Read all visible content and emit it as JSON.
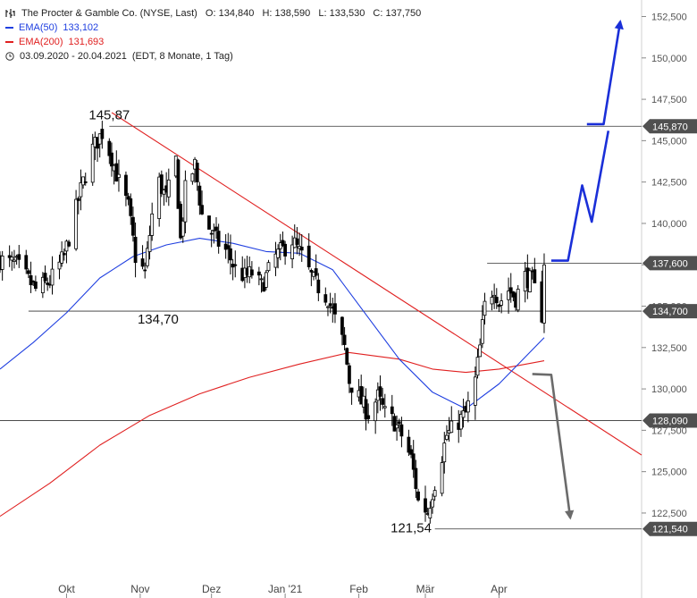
{
  "legend": {
    "title": "The Procter & Gamble Co. (NYSE, Last)",
    "open_label": "O:",
    "open": "134,840",
    "high_label": "H:",
    "high": "138,590",
    "low_label": "L:",
    "low": "133,530",
    "close_label": "C:",
    "close": "137,750",
    "ema50_label": "EMA(50)",
    "ema50_value": "133,102",
    "ema200_label": "EMA(200)",
    "ema200_value": "131,693",
    "period": "03.09.2020 - 20.04.2021",
    "period_info": "(EDT, 8 Monate, 1 Tag)"
  },
  "colors": {
    "ema50": "#1f3fe0",
    "ema200": "#e02020",
    "trendline": "#e02020",
    "bull_projection": "#1a2fd8",
    "bear_projection": "#6b6b6b",
    "candles": "#000000",
    "levels": "#333333",
    "axis_text": "#555555"
  },
  "chart_data": {
    "type": "line",
    "title": "The Procter & Gamble Co. (NYSE, Last)",
    "xlabel": "",
    "ylabel": "",
    "ylim": [
      118.5,
      153.5
    ],
    "y_ticks": [
      122.5,
      125,
      127.5,
      130,
      132.5,
      135,
      137.5,
      140,
      142.5,
      145,
      147.5,
      150,
      152.5
    ],
    "y_tick_labels": [
      "122,500",
      "125,000",
      "127,500",
      "130,000",
      "132,500",
      "135,000",
      "137,500",
      "140,000",
      "142,500",
      "145,000",
      "147,500",
      "150,000",
      "152,500"
    ],
    "x_range": [
      "2020-09-03",
      "2021-05-31"
    ],
    "x_ticks": [
      {
        "date": "2020-10-01",
        "label": "Okt"
      },
      {
        "date": "2020-11-01",
        "label": "Nov"
      },
      {
        "date": "2020-12-01",
        "label": "Dez"
      },
      {
        "date": "2021-01-01",
        "label": "Jan '21"
      },
      {
        "date": "2021-02-01",
        "label": "Feb"
      },
      {
        "date": "2021-03-01",
        "label": "Mär"
      },
      {
        "date": "2021-04-01",
        "label": "Apr"
      }
    ],
    "levels": [
      {
        "value": 145.87,
        "label": "145,870"
      },
      {
        "value": 137.6,
        "label": "137,600"
      },
      {
        "value": 134.7,
        "label": "134,700"
      },
      {
        "value": 128.09,
        "label": "128,090"
      },
      {
        "value": 121.54,
        "label": "121,540"
      }
    ],
    "annotations": [
      {
        "text": "145,87",
        "date": "2020-10-19",
        "value": 145.87
      },
      {
        "text": "134,70",
        "date": "2020-11-01",
        "value": 134.7
      },
      {
        "text": "121,54",
        "date": "2021-02-26",
        "value": 121.54
      }
    ],
    "price_path": [
      {
        "x": "2020-09-03",
        "y": 137.8
      },
      {
        "x": "2020-09-10",
        "y": 137.5
      },
      {
        "x": "2020-09-18",
        "y": 136.0
      },
      {
        "x": "2020-09-24",
        "y": 136.5
      },
      {
        "x": "2020-09-30",
        "y": 138.0
      },
      {
        "x": "2020-10-07",
        "y": 142.0
      },
      {
        "x": "2020-10-12",
        "y": 144.5
      },
      {
        "x": "2020-10-16",
        "y": 145.5
      },
      {
        "x": "2020-10-20",
        "y": 144.0
      },
      {
        "x": "2020-10-23",
        "y": 142.5
      },
      {
        "x": "2020-10-27",
        "y": 141.0
      },
      {
        "x": "2020-10-30",
        "y": 138.0
      },
      {
        "x": "2020-11-03",
        "y": 137.0
      },
      {
        "x": "2020-11-06",
        "y": 140.5
      },
      {
        "x": "2020-11-09",
        "y": 142.5
      },
      {
        "x": "2020-11-12",
        "y": 141.5
      },
      {
        "x": "2020-11-16",
        "y": 143.8
      },
      {
        "x": "2020-11-18",
        "y": 139.0
      },
      {
        "x": "2020-11-20",
        "y": 142.0
      },
      {
        "x": "2020-11-24",
        "y": 143.5
      },
      {
        "x": "2020-11-27",
        "y": 140.5
      },
      {
        "x": "2020-12-01",
        "y": 139.5
      },
      {
        "x": "2020-12-04",
        "y": 138.8
      },
      {
        "x": "2020-12-08",
        "y": 138.2
      },
      {
        "x": "2020-12-11",
        "y": 137.2
      },
      {
        "x": "2020-12-15",
        "y": 136.8
      },
      {
        "x": "2020-12-18",
        "y": 137.0
      },
      {
        "x": "2020-12-22",
        "y": 136.2
      },
      {
        "x": "2020-12-28",
        "y": 138.0
      },
      {
        "x": "2021-01-04",
        "y": 139.0
      },
      {
        "x": "2021-01-08",
        "y": 138.0
      },
      {
        "x": "2021-01-13",
        "y": 136.5
      },
      {
        "x": "2021-01-19",
        "y": 135.5
      },
      {
        "x": "2021-01-22",
        "y": 134.2
      },
      {
        "x": "2021-01-26",
        "y": 132.5
      },
      {
        "x": "2021-01-28",
        "y": 130.5
      },
      {
        "x": "2021-02-02",
        "y": 129.2
      },
      {
        "x": "2021-02-05",
        "y": 128.5
      },
      {
        "x": "2021-02-09",
        "y": 129.5
      },
      {
        "x": "2021-02-12",
        "y": 128.5
      },
      {
        "x": "2021-02-16",
        "y": 128.0
      },
      {
        "x": "2021-02-19",
        "y": 127.2
      },
      {
        "x": "2021-02-23",
        "y": 125.8
      },
      {
        "x": "2021-02-25",
        "y": 124.2
      },
      {
        "x": "2021-02-26",
        "y": 123.2
      },
      {
        "x": "2021-03-02",
        "y": 122.6
      },
      {
        "x": "2021-03-04",
        "y": 123.8
      },
      {
        "x": "2021-03-08",
        "y": 126.0
      },
      {
        "x": "2021-03-10",
        "y": 127.2
      },
      {
        "x": "2021-03-12",
        "y": 127.5
      },
      {
        "x": "2021-03-16",
        "y": 128.2
      },
      {
        "x": "2021-03-18",
        "y": 128.5
      },
      {
        "x": "2021-03-22",
        "y": 130.5
      },
      {
        "x": "2021-03-24",
        "y": 132.5
      },
      {
        "x": "2021-03-26",
        "y": 135.0
      },
      {
        "x": "2021-03-30",
        "y": 136.2
      },
      {
        "x": "2021-04-01",
        "y": 135.2
      },
      {
        "x": "2021-04-05",
        "y": 136.0
      },
      {
        "x": "2021-04-08",
        "y": 135.5
      },
      {
        "x": "2021-04-12",
        "y": 136.8
      },
      {
        "x": "2021-04-15",
        "y": 136.5
      },
      {
        "x": "2021-04-19",
        "y": 134.5
      },
      {
        "x": "2021-04-20",
        "y": 137.75
      }
    ],
    "series": [
      {
        "name": "EMA(50)",
        "values": [
          {
            "x": "2020-09-03",
            "y": 131.2
          },
          {
            "x": "2020-09-17",
            "y": 132.8
          },
          {
            "x": "2020-10-01",
            "y": 134.6
          },
          {
            "x": "2020-10-15",
            "y": 136.7
          },
          {
            "x": "2020-10-29",
            "y": 138.0
          },
          {
            "x": "2020-11-12",
            "y": 138.7
          },
          {
            "x": "2020-11-26",
            "y": 139.1
          },
          {
            "x": "2020-12-10",
            "y": 138.8
          },
          {
            "x": "2020-12-24",
            "y": 138.3
          },
          {
            "x": "2021-01-07",
            "y": 138.2
          },
          {
            "x": "2021-01-21",
            "y": 137.2
          },
          {
            "x": "2021-02-04",
            "y": 134.5
          },
          {
            "x": "2021-02-18",
            "y": 131.8
          },
          {
            "x": "2021-03-04",
            "y": 129.8
          },
          {
            "x": "2021-03-18",
            "y": 128.8
          },
          {
            "x": "2021-04-01",
            "y": 130.3
          },
          {
            "x": "2021-04-20",
            "y": 133.1
          }
        ]
      },
      {
        "name": "EMA(200)",
        "values": [
          {
            "x": "2020-09-03",
            "y": 122.3
          },
          {
            "x": "2020-09-24",
            "y": 124.3
          },
          {
            "x": "2020-10-15",
            "y": 126.6
          },
          {
            "x": "2020-11-05",
            "y": 128.4
          },
          {
            "x": "2020-11-26",
            "y": 129.7
          },
          {
            "x": "2020-12-17",
            "y": 130.7
          },
          {
            "x": "2021-01-07",
            "y": 131.5
          },
          {
            "x": "2021-01-28",
            "y": 132.2
          },
          {
            "x": "2021-02-18",
            "y": 131.8
          },
          {
            "x": "2021-03-04",
            "y": 131.2
          },
          {
            "x": "2021-03-18",
            "y": 131.0
          },
          {
            "x": "2021-04-01",
            "y": 131.2
          },
          {
            "x": "2021-04-20",
            "y": 131.7
          }
        ]
      }
    ],
    "trendline": [
      {
        "x": "2020-10-20",
        "y": 146.7
      },
      {
        "x": "2021-05-31",
        "y": 126.0
      }
    ],
    "bull_projection": [
      {
        "x": "2021-04-23",
        "y": 137.75
      },
      {
        "x": "2021-04-30",
        "y": 137.75
      },
      {
        "x": "2021-05-06",
        "y": 142.3
      },
      {
        "x": "2021-05-10",
        "y": 140.1
      },
      {
        "x": "2021-05-17",
        "y": 145.6
      }
    ],
    "bull_projection_2": [
      {
        "x": "2021-05-08",
        "y": 146.0
      },
      {
        "x": "2021-05-15",
        "y": 146.0
      },
      {
        "x": "2021-05-22",
        "y": 152.2
      }
    ],
    "bear_projection": [
      {
        "x": "2021-04-15",
        "y": 130.9
      },
      {
        "x": "2021-04-23",
        "y": 130.85
      },
      {
        "x": "2021-05-01",
        "y": 122.2
      }
    ]
  }
}
